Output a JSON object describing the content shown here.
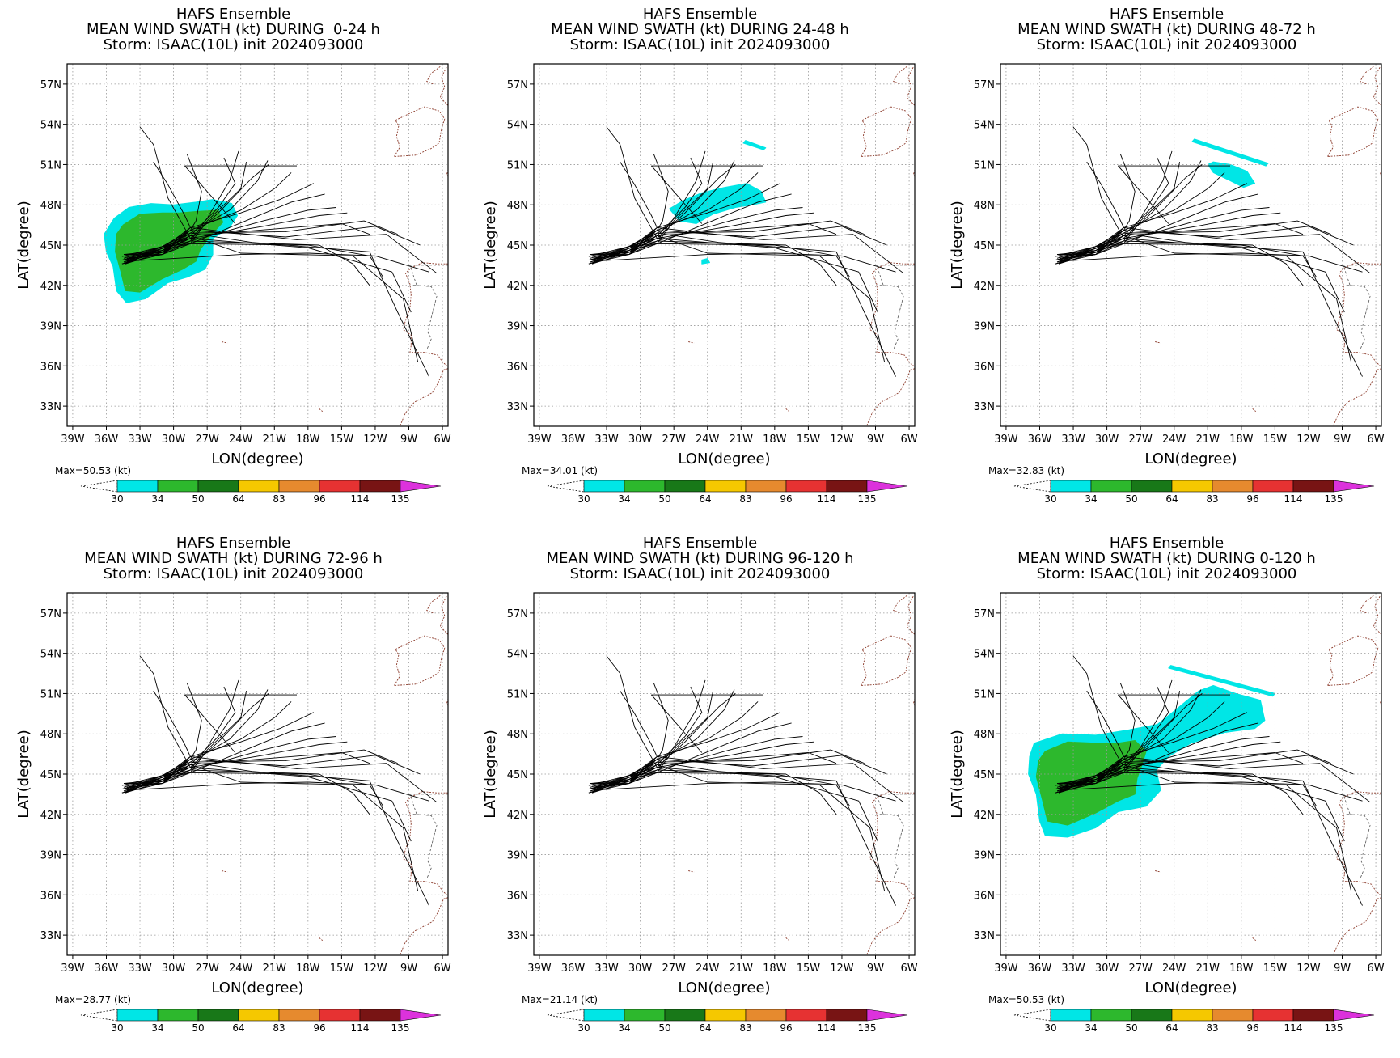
{
  "panels": [
    {
      "title": [
        "HAFS Ensemble",
        "MEAN WIND SWATH (kt) DURING  0-24 h",
        "Storm: ISAAC(10L) init 2024093000"
      ],
      "max_label": "Max=50.53 (kt)",
      "swath": "early"
    },
    {
      "title": [
        "HAFS Ensemble",
        "MEAN WIND SWATH (kt) DURING 24-48 h",
        "Storm: ISAAC(10L) init 2024093000"
      ],
      "max_label": "Max=34.01 (kt)",
      "swath": "mid"
    },
    {
      "title": [
        "HAFS Ensemble",
        "MEAN WIND SWATH (kt) DURING 48-72 h",
        "Storm: ISAAC(10L) init 2024093000"
      ],
      "max_label": "Max=32.83 (kt)",
      "swath": "late"
    },
    {
      "title": [
        "HAFS Ensemble",
        "MEAN WIND SWATH (kt) DURING 72-96 h",
        "Storm: ISAAC(10L) init 2024093000"
      ],
      "max_label": "Max=28.77 (kt)",
      "swath": "none"
    },
    {
      "title": [
        "HAFS Ensemble",
        "MEAN WIND SWATH (kt) DURING 96-120 h",
        "Storm: ISAAC(10L) init 2024093000"
      ],
      "max_label": "Max=21.14 (kt)",
      "swath": "none"
    },
    {
      "title": [
        "HAFS Ensemble",
        "MEAN WIND SWATH (kt) DURING 0-120 h",
        "Storm: ISAAC(10L) init 2024093000"
      ],
      "max_label": "Max=50.53 (kt)",
      "swath": "all"
    }
  ],
  "axes": {
    "xlabel": "LON(degree)",
    "ylabel": "LAT(degree)",
    "lon_ticks": [
      "39W",
      "36W",
      "33W",
      "30W",
      "27W",
      "24W",
      "21W",
      "18W",
      "15W",
      "12W",
      "9W",
      "6W"
    ],
    "lat_ticks": [
      "57N",
      "54N",
      "51N",
      "48N",
      "45N",
      "42N",
      "39N",
      "36N",
      "33N"
    ],
    "lon_range": [
      -39.5,
      -5.5
    ],
    "lat_range": [
      31.5,
      58.5
    ]
  },
  "colorbar": {
    "labels": [
      "30",
      "34",
      "50",
      "64",
      "83",
      "96",
      "114",
      "135"
    ],
    "colors": [
      "#00e6e6",
      "#2db82d",
      "#187818",
      "#f5c800",
      "#e68a2e",
      "#e63232",
      "#781414",
      "#dc32dc"
    ]
  },
  "chart_data": {
    "type": "map",
    "variable": "MEAN WIND SWATH (kt)",
    "storm": "ISAAC(10L)",
    "init": "2024093000",
    "periods": [
      "0-24 h",
      "24-48 h",
      "48-72 h",
      "72-96 h",
      "96-120 h",
      "0-120 h"
    ],
    "max_kt": [
      50.53,
      34.01,
      32.83,
      28.77,
      21.14,
      50.53
    ],
    "levels_kt": [
      30,
      34,
      50,
      64,
      83,
      96,
      114,
      135
    ]
  }
}
